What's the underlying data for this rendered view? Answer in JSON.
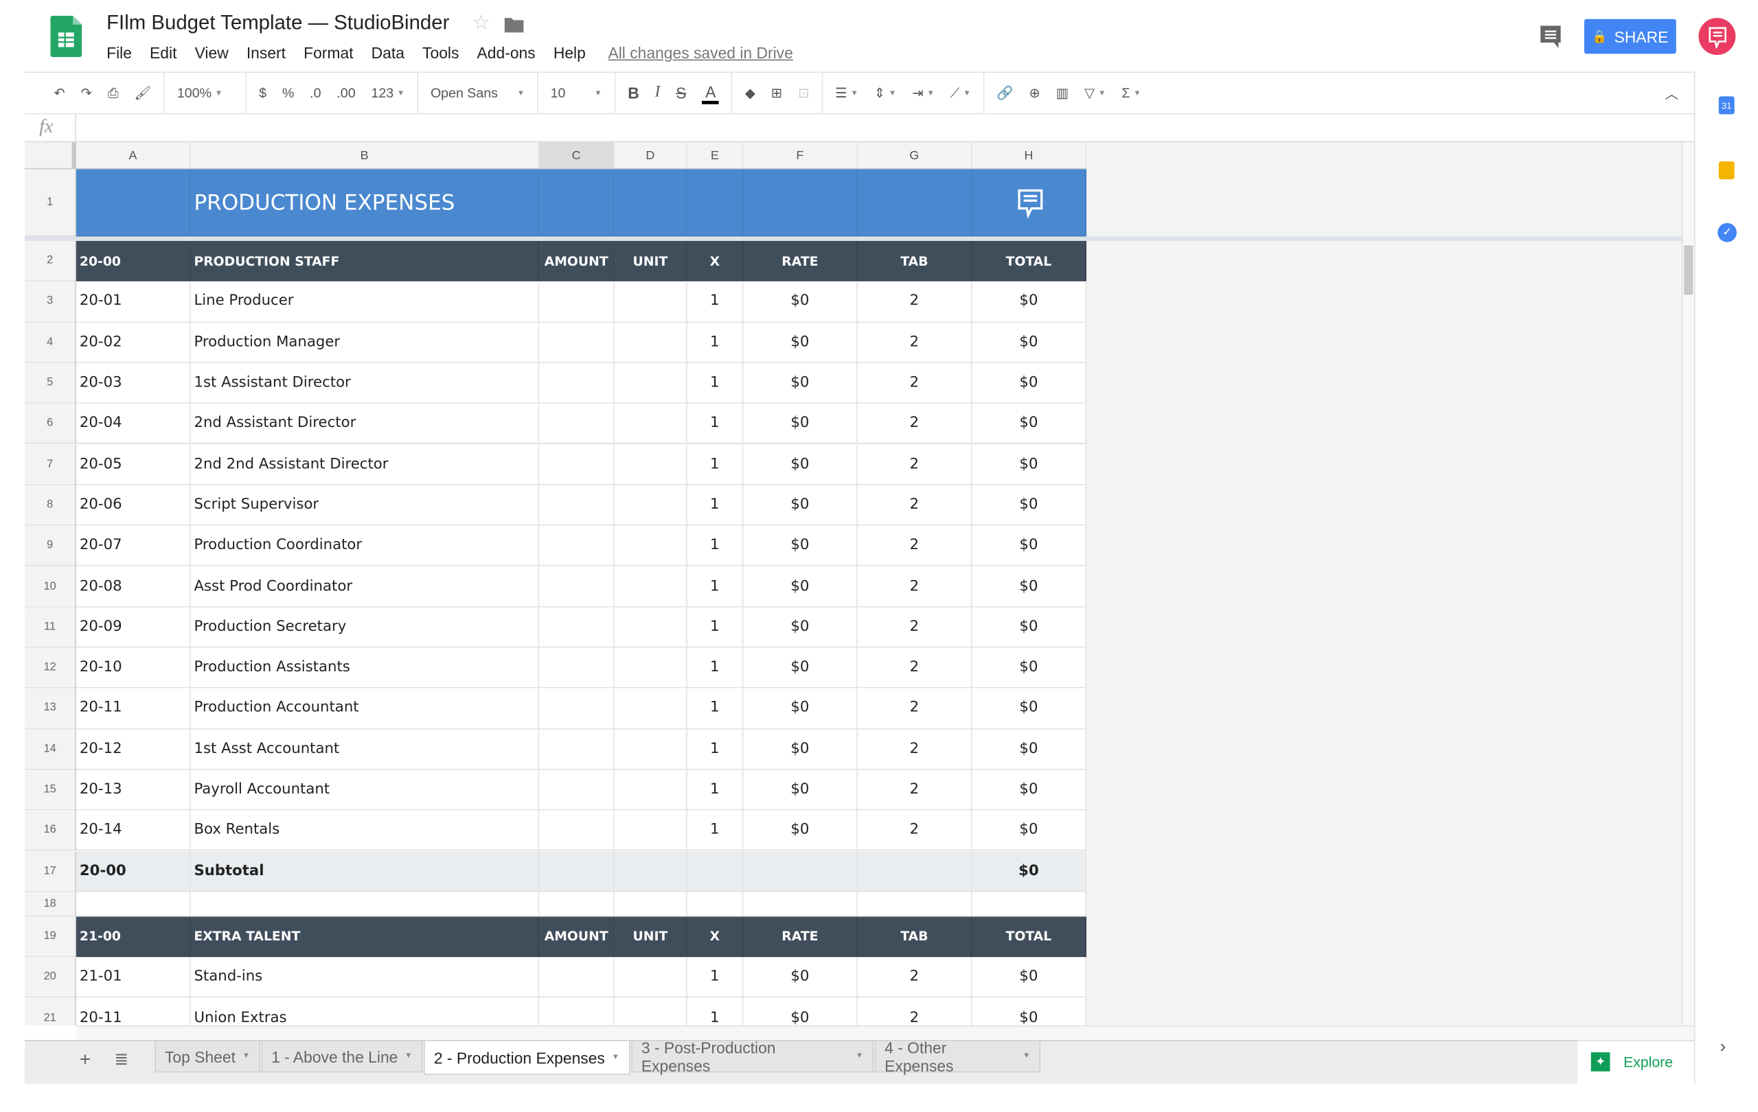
{
  "app": {
    "title": "FIlm Budget Template — StudioBinder",
    "save_status": "All changes saved in Drive",
    "share_label": "SHARE",
    "accent": "#4285f4"
  },
  "menu": [
    "File",
    "Edit",
    "View",
    "Insert",
    "Format",
    "Data",
    "Tools",
    "Add-ons",
    "Help"
  ],
  "toolbar": {
    "zoom": "100%",
    "currency": "$",
    "percent": "%",
    "dec_less": ".0",
    "dec_more": ".00",
    "format": "123",
    "font": "Open Sans",
    "size": "10",
    "bold": "B",
    "italic": "I",
    "strike": "S",
    "color": "A"
  },
  "formula": {
    "label": "fx",
    "value": ""
  },
  "columns": [
    "A",
    "B",
    "C",
    "D",
    "E",
    "F",
    "G",
    "H"
  ],
  "sheet": {
    "banner": "PRODUCTION EXPENSES",
    "banner_color": "#4a89d0",
    "header_color": "#404e5c",
    "rows": [
      {
        "n": "2",
        "type": "hdr",
        "cells": [
          "20-00",
          "PRODUCTION STAFF",
          "AMOUNT",
          "UNIT",
          "X",
          "RATE",
          "TAB",
          "TOTAL"
        ]
      },
      {
        "n": "3",
        "cells": [
          "20-01",
          "Line Producer",
          "",
          "",
          "1",
          "$0",
          "2",
          "$0"
        ]
      },
      {
        "n": "4",
        "cells": [
          "20-02",
          "Production Manager",
          "",
          "",
          "1",
          "$0",
          "2",
          "$0"
        ]
      },
      {
        "n": "5",
        "cells": [
          "20-03",
          "1st Assistant Director",
          "",
          "",
          "1",
          "$0",
          "2",
          "$0"
        ]
      },
      {
        "n": "6",
        "cells": [
          "20-04",
          "2nd Assistant Director",
          "",
          "",
          "1",
          "$0",
          "2",
          "$0"
        ]
      },
      {
        "n": "7",
        "cells": [
          "20-05",
          "2nd 2nd Assistant Director",
          "",
          "",
          "1",
          "$0",
          "2",
          "$0"
        ]
      },
      {
        "n": "8",
        "cells": [
          "20-06",
          "Script Supervisor",
          "",
          "",
          "1",
          "$0",
          "2",
          "$0"
        ]
      },
      {
        "n": "9",
        "cells": [
          "20-07",
          "Production Coordinator",
          "",
          "",
          "1",
          "$0",
          "2",
          "$0"
        ]
      },
      {
        "n": "10",
        "cells": [
          "20-08",
          "Asst Prod Coordinator",
          "",
          "",
          "1",
          "$0",
          "2",
          "$0"
        ]
      },
      {
        "n": "11",
        "cells": [
          "20-09",
          "Production Secretary",
          "",
          "",
          "1",
          "$0",
          "2",
          "$0"
        ]
      },
      {
        "n": "12",
        "cells": [
          "20-10",
          "Production Assistants",
          "",
          "",
          "1",
          "$0",
          "2",
          "$0"
        ]
      },
      {
        "n": "13",
        "cells": [
          "20-11",
          "Production Accountant",
          "",
          "",
          "1",
          "$0",
          "2",
          "$0"
        ]
      },
      {
        "n": "14",
        "cells": [
          "20-12",
          "1st Asst Accountant",
          "",
          "",
          "1",
          "$0",
          "2",
          "$0"
        ]
      },
      {
        "n": "15",
        "cells": [
          "20-13",
          "Payroll Accountant",
          "",
          "",
          "1",
          "$0",
          "2",
          "$0"
        ]
      },
      {
        "n": "16",
        "cells": [
          "20-14",
          "Box Rentals",
          "",
          "",
          "1",
          "$0",
          "2",
          "$0"
        ]
      },
      {
        "n": "17",
        "type": "sub",
        "cells": [
          "20-00",
          "Subtotal",
          "",
          "",
          "",
          "",
          "",
          "$0"
        ]
      },
      {
        "n": "18",
        "type": "blank",
        "cells": [
          "",
          "",
          "",
          "",
          "",
          "",
          "",
          ""
        ]
      },
      {
        "n": "19",
        "type": "hdr",
        "cells": [
          "21-00",
          "EXTRA TALENT",
          "AMOUNT",
          "UNIT",
          "X",
          "RATE",
          "TAB",
          "TOTAL"
        ]
      },
      {
        "n": "20",
        "cells": [
          "21-01",
          "Stand-ins",
          "",
          "",
          "1",
          "$0",
          "2",
          "$0"
        ]
      },
      {
        "n": "21",
        "cells": [
          "20-11",
          "Union Extras",
          "",
          "",
          "1",
          "$0",
          "2",
          "$0"
        ]
      }
    ]
  },
  "tabs": [
    {
      "label": "Top Sheet",
      "active": false
    },
    {
      "label": "1 - Above the Line",
      "active": false
    },
    {
      "label": "2 - Production Expenses",
      "active": true
    },
    {
      "label": "3 - Post-Production Expenses",
      "active": false
    },
    {
      "label": "4 - Other Expenses",
      "active": false
    }
  ],
  "explore": "Explore",
  "side_panel": {
    "calendar": "31"
  }
}
